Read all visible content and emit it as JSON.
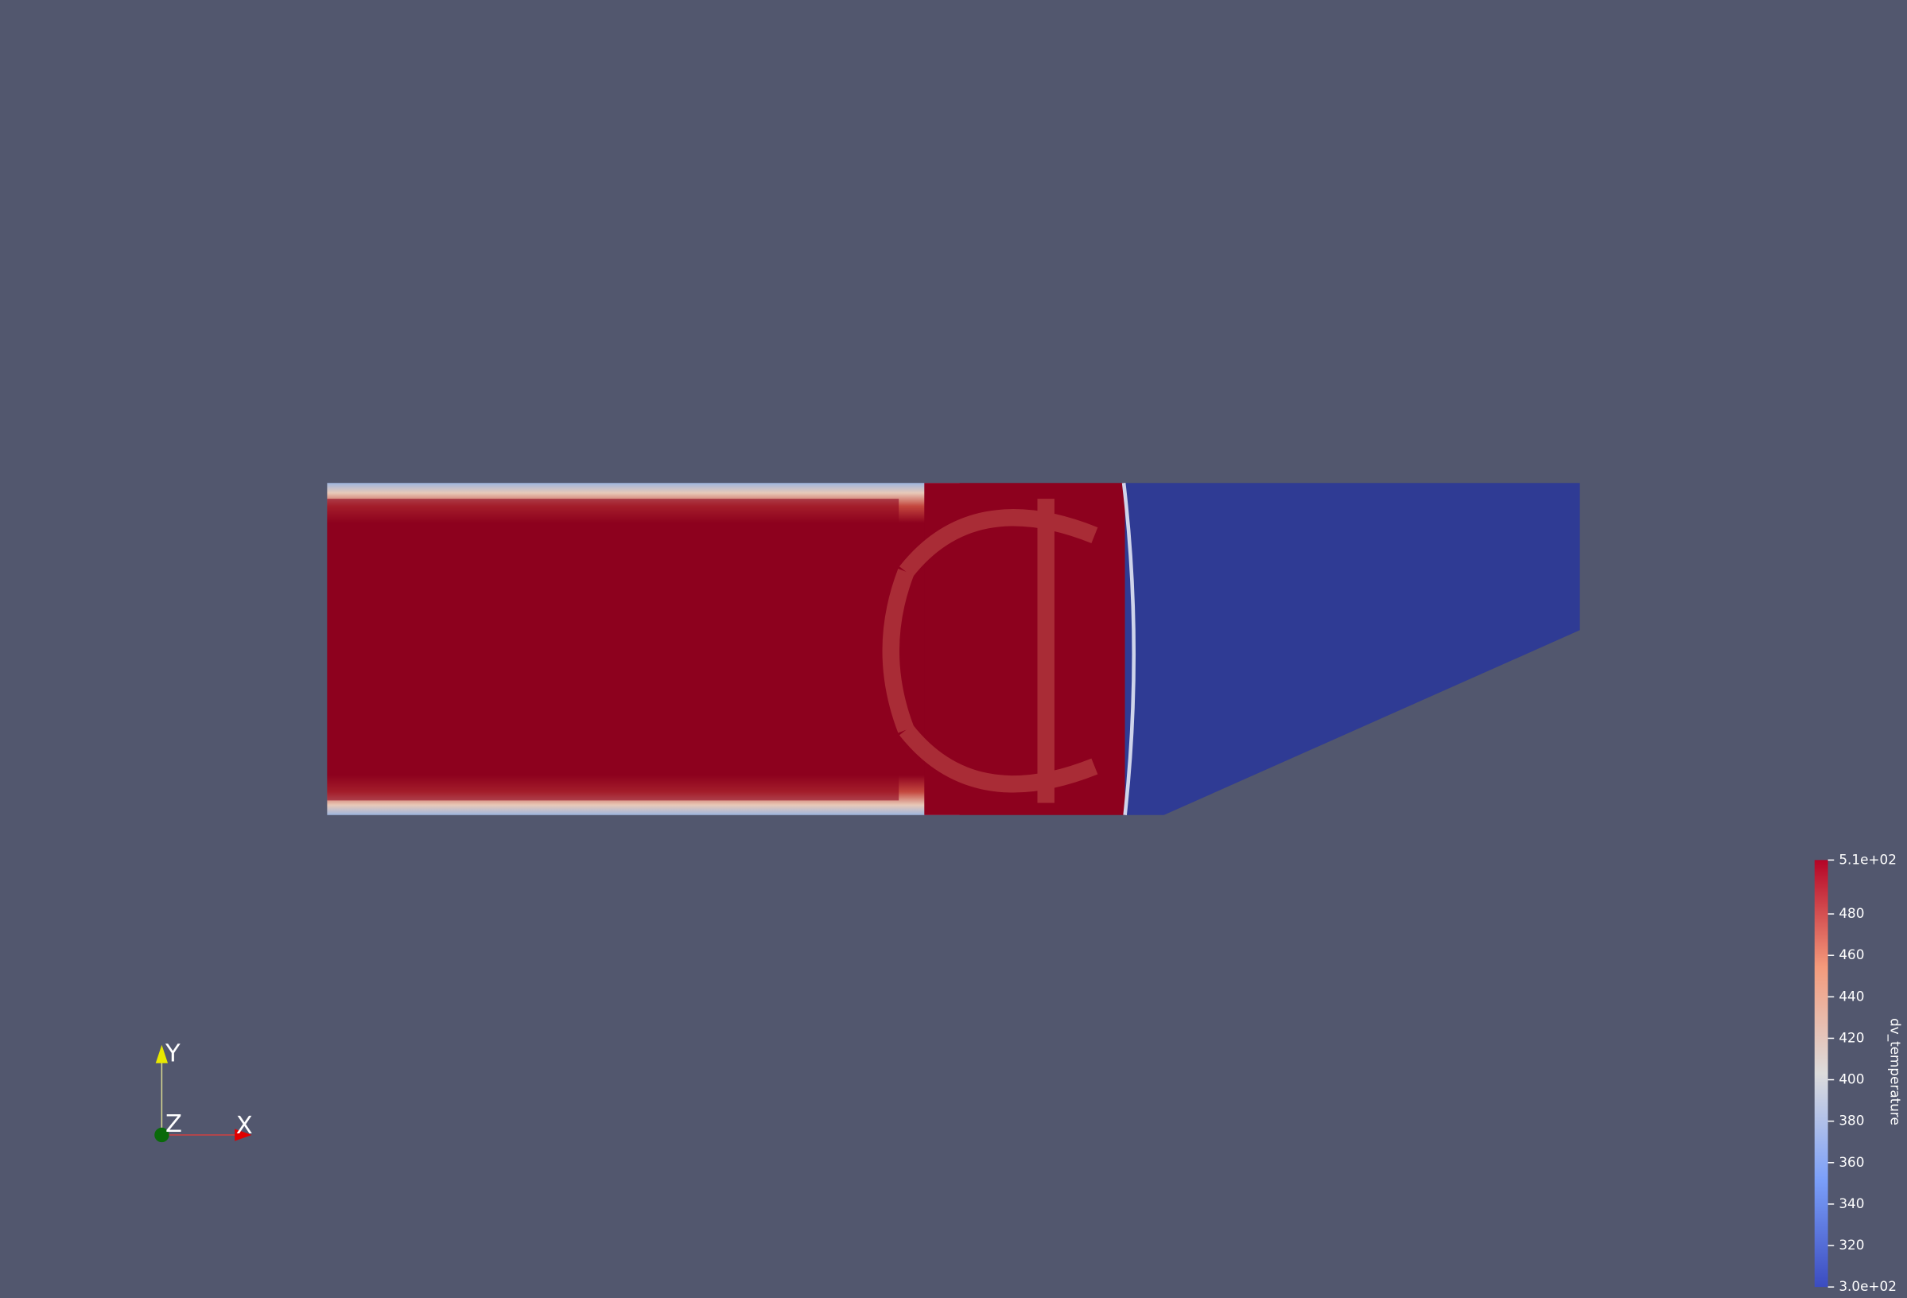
{
  "axes_triad": {
    "y_label": "Y",
    "z_label": "Z",
    "x_label": "X"
  },
  "colorbar": {
    "title": "dv_temperature",
    "range": [
      300,
      506
    ],
    "ticks": [
      {
        "value": 300,
        "label": "3.0e+02"
      },
      320,
      340,
      360,
      380,
      400,
      420,
      440,
      460,
      480,
      {
        "value": 506,
        "label": "5.1e+02"
      }
    ]
  }
}
